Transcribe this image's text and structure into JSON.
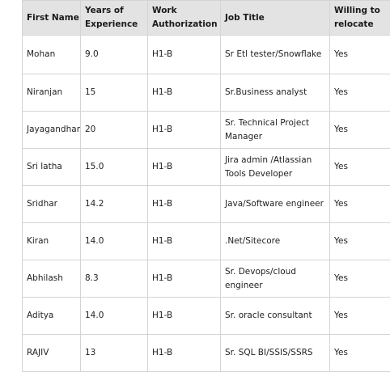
{
  "table": {
    "headers": [
      "First Name",
      "Years of Experience",
      "Work Authorization",
      "Job Title",
      "Willing to relocate"
    ],
    "rows": [
      [
        "Mohan",
        "9.0",
        "H1-B",
        "Sr Etl tester/Snowflake",
        "Yes"
      ],
      [
        "Niranjan",
        "15",
        "H1-B",
        "Sr.Business analyst",
        "Yes"
      ],
      [
        "Jayagandhan",
        "20",
        "H1-B",
        "Sr. Technical Project Manager",
        "Yes"
      ],
      [
        "Sri latha",
        "15.0",
        "H1-B",
        "Jira admin /Atlassian Tools Developer",
        "Yes"
      ],
      [
        "Sridhar",
        "14.2",
        "H1-B",
        "Java/Software engineer",
        "Yes"
      ],
      [
        "Kiran",
        "14.0",
        "H1-B",
        ".Net/Sitecore",
        "Yes"
      ],
      [
        "Abhilash",
        "8.3",
        "H1-B",
        "Sr. Devops/cloud engineer",
        "Yes"
      ],
      [
        "Aditya",
        "14.0",
        "H1-B",
        "Sr. oracle consultant",
        "Yes"
      ],
      [
        "RAJIV",
        "13",
        "H1-B",
        "Sr. SQL BI/SSIS/SSRS",
        "Yes"
      ]
    ]
  }
}
